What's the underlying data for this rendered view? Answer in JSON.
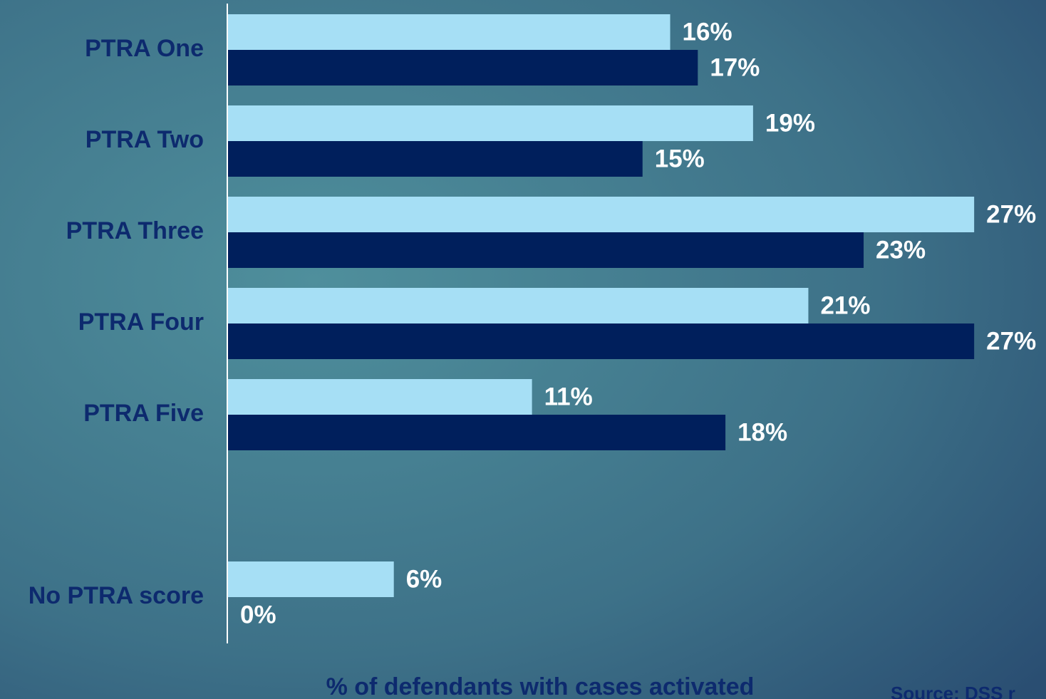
{
  "chart_data": {
    "type": "hbar",
    "categories": [
      "PTRA One",
      "PTRA Two",
      "PTRA Three",
      "PTRA Four",
      "PTRA Five",
      null,
      "No PTRA score"
    ],
    "series": [
      {
        "color": "#a6dff5",
        "values": [
          16,
          19,
          27,
          21,
          11,
          null,
          6
        ],
        "value_labels": [
          "16%",
          "19%",
          "27%",
          "21%",
          "11%",
          null,
          "6%"
        ]
      },
      {
        "color": "#001f5c",
        "values": [
          17,
          15,
          23,
          27,
          18,
          null,
          0
        ],
        "value_labels": [
          "17%",
          "15%",
          "23%",
          "27%",
          "18%",
          null,
          "0%"
        ]
      }
    ],
    "xlim": [
      0,
      29.6
    ],
    "x_label": "% of defendants with cases activated",
    "source": "Source: DSS r"
  }
}
